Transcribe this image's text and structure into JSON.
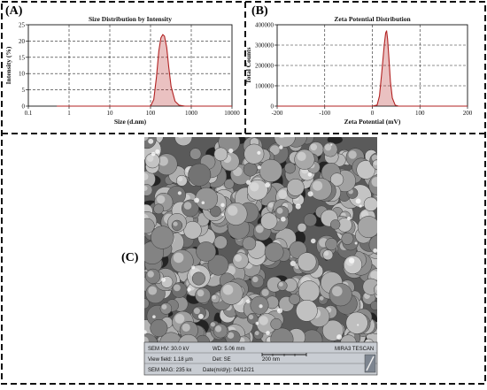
{
  "labels": {
    "a": "(A)",
    "b": "(B)",
    "c": "(C)"
  },
  "chart_data": [
    {
      "type": "line",
      "title": "Size Distribution by Intensity",
      "xlabel": "Size (d.nm)",
      "ylabel": "Intensity (%)",
      "xscale": "log",
      "xlim": [
        0.1,
        10000
      ],
      "ylim": [
        0,
        25
      ],
      "xticks": [
        0.1,
        1,
        10,
        100,
        1000,
        10000
      ],
      "xtick_labels": [
        "0.1",
        "1",
        "10",
        "100",
        "1000",
        "10000"
      ],
      "yticks": [
        0,
        5,
        10,
        15,
        20,
        25
      ],
      "ytick_labels": [
        "0",
        "5",
        "10",
        "15",
        "20",
        "25"
      ],
      "grid": true,
      "series": [
        {
          "color": "#b22222",
          "x": [
            0.5,
            10,
            50,
            100,
            120,
            140,
            160,
            180,
            200,
            220,
            250,
            280,
            320,
            400,
            500,
            700,
            1000,
            10000
          ],
          "y": [
            0,
            0,
            0,
            0,
            2,
            9,
            17,
            21,
            22,
            21.5,
            18,
            12,
            6,
            1.5,
            0.3,
            0,
            0,
            0
          ]
        }
      ]
    },
    {
      "type": "line",
      "title": "Zeta Potential Distribution",
      "xlabel": "Zeta Potential (mV)",
      "ylabel": "Total Counts",
      "xlim": [
        -200,
        200
      ],
      "ylim": [
        0,
        400000
      ],
      "xticks": [
        -200,
        -100,
        0,
        100,
        200
      ],
      "xtick_labels": [
        "-200",
        "-100",
        "0",
        "100",
        "200"
      ],
      "yticks": [
        0,
        100000,
        200000,
        300000,
        400000
      ],
      "ytick_labels": [
        "0",
        "100000",
        "200000",
        "300000",
        "400000"
      ],
      "grid": true,
      "series": [
        {
          "color": "#b22222",
          "x": [
            -200,
            0,
            10,
            15,
            20,
            25,
            28,
            30,
            32,
            35,
            38,
            42,
            48,
            55,
            200
          ],
          "y": [
            0,
            0,
            5000,
            50000,
            170000,
            300000,
            360000,
            370000,
            330000,
            230000,
            120000,
            40000,
            5000,
            0,
            0
          ]
        }
      ]
    }
  ],
  "sem": {
    "row1": [
      "SEM HV: 30.0 kV",
      "WD: 5.06 mm",
      "MIRA3 TESCAN"
    ],
    "row2": [
      "View field: 1.18 µm",
      "Det: SE",
      "200 nm"
    ],
    "row3": [
      "SEM MAG: 235 kx",
      "Date(m/d/y): 04/12/21"
    ]
  }
}
